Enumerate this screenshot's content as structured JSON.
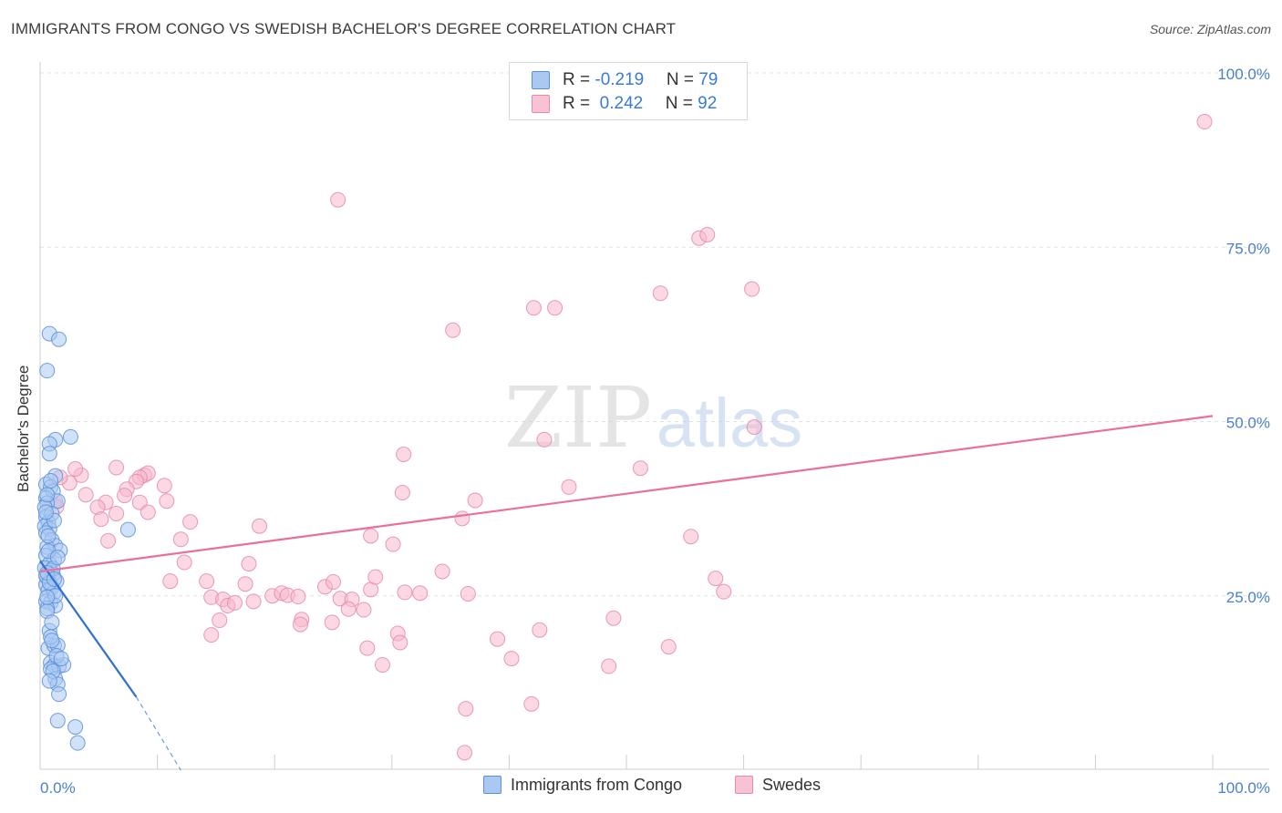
{
  "title": "IMMIGRANTS FROM CONGO VS SWEDISH BACHELOR'S DEGREE CORRELATION CHART",
  "source": "Source: ZipAtlas.com",
  "watermark": {
    "zip": "ZIP",
    "atlas": "atlas"
  },
  "legend": {
    "rows": [
      {
        "r_label": "R = ",
        "r_value": "-0.219",
        "n_label": "N = ",
        "n_value": "79"
      },
      {
        "r_label": "R = ",
        "r_value": " 0.242",
        "n_label": "N = ",
        "n_value": "92"
      }
    ]
  },
  "colors": {
    "blue_fill": "#a9c8f2",
    "blue_stroke": "#5b8fd8",
    "blue_line": "#2f6fd6",
    "pink_fill": "#f7b8cc",
    "pink_stroke": "#e58aa8",
    "pink_line": "#e8709a",
    "tick_text": "#4a7fd0",
    "grid": "#e2e2e2"
  },
  "chart_data": {
    "type": "scatter",
    "ylabel": "Bachelor's Degree",
    "xlim": [
      0,
      100
    ],
    "ylim": [
      0,
      100
    ],
    "x_ticks": [
      "0.0%",
      "100.0%"
    ],
    "y_ticks": [
      {
        "value": 100,
        "label": "100.0%"
      },
      {
        "value": 75,
        "label": "75.0%"
      },
      {
        "value": 50,
        "label": "50.0%"
      },
      {
        "value": 25,
        "label": "25.0%"
      }
    ],
    "series": [
      {
        "name": "Immigrants from Congo",
        "color": "blue",
        "trend": {
          "x0": 0,
          "y0": 30.0,
          "x1": 8.2,
          "y1": 10.5,
          "dash_to_x": 12.0,
          "dash_to_y": 0
        },
        "points": [
          [
            0.8,
            62.6
          ],
          [
            1.6,
            61.8
          ],
          [
            0.6,
            57.3
          ],
          [
            2.6,
            47.8
          ],
          [
            1.3,
            47.4
          ],
          [
            0.8,
            46.8
          ],
          [
            0.8,
            45.4
          ],
          [
            1.3,
            42.2
          ],
          [
            0.5,
            41.0
          ],
          [
            0.9,
            40.6
          ],
          [
            1.1,
            40.0
          ],
          [
            0.5,
            39.0
          ],
          [
            1.5,
            38.6
          ],
          [
            0.6,
            38.3
          ],
          [
            0.4,
            37.7
          ],
          [
            0.5,
            36.3
          ],
          [
            0.7,
            35.5
          ],
          [
            0.4,
            35.0
          ],
          [
            0.8,
            34.6
          ],
          [
            0.5,
            34.0
          ],
          [
            7.5,
            34.5
          ],
          [
            1.0,
            33.0
          ],
          [
            1.3,
            32.2
          ],
          [
            0.6,
            32.0
          ],
          [
            1.7,
            31.5
          ],
          [
            0.5,
            30.8
          ],
          [
            1.2,
            30.2
          ],
          [
            0.8,
            29.6
          ],
          [
            0.4,
            29.0
          ],
          [
            0.9,
            28.6
          ],
          [
            1.1,
            28.1
          ],
          [
            0.6,
            27.6
          ],
          [
            1.4,
            27.1
          ],
          [
            0.5,
            26.6
          ],
          [
            1.0,
            26.2
          ],
          [
            0.7,
            25.8
          ],
          [
            1.2,
            25.5
          ],
          [
            0.5,
            24.2
          ],
          [
            0.9,
            24.0
          ],
          [
            1.3,
            23.6
          ],
          [
            0.6,
            23.2
          ],
          [
            0.8,
            20.0
          ],
          [
            0.7,
            17.5
          ],
          [
            1.2,
            17.9
          ],
          [
            1.5,
            17.9
          ],
          [
            0.9,
            15.4
          ],
          [
            1.2,
            15.0
          ],
          [
            1.6,
            14.9
          ],
          [
            2.0,
            15.1
          ],
          [
            0.9,
            14.5
          ],
          [
            1.3,
            13.1
          ],
          [
            1.5,
            12.3
          ],
          [
            1.6,
            10.9
          ],
          [
            1.5,
            7.1
          ],
          [
            3.0,
            6.2
          ],
          [
            3.2,
            3.9
          ],
          [
            0.6,
            39.5
          ],
          [
            1.0,
            36.8
          ],
          [
            0.7,
            31.4
          ],
          [
            1.1,
            28.9
          ],
          [
            0.5,
            27.9
          ],
          [
            0.8,
            26.9
          ],
          [
            1.3,
            25.0
          ],
          [
            0.6,
            22.8
          ],
          [
            1.0,
            21.2
          ],
          [
            0.9,
            19.1
          ],
          [
            1.4,
            16.4
          ],
          [
            1.1,
            14.2
          ],
          [
            0.7,
            33.6
          ],
          [
            1.2,
            35.8
          ],
          [
            0.5,
            37.0
          ],
          [
            0.9,
            41.5
          ],
          [
            1.5,
            30.5
          ],
          [
            0.6,
            24.8
          ],
          [
            1.0,
            18.6
          ],
          [
            1.8,
            16.0
          ],
          [
            0.8,
            12.8
          ],
          [
            0.6,
            28.3
          ],
          [
            1.2,
            27.4
          ]
        ]
      },
      {
        "name": "Swedes",
        "color": "pink",
        "trend": {
          "x0": 0,
          "y0": 28.5,
          "x1": 100,
          "y1": 50.8
        },
        "points": [
          [
            99.3,
            93.0
          ],
          [
            25.4,
            81.8
          ],
          [
            56.2,
            76.3
          ],
          [
            56.9,
            76.8
          ],
          [
            52.9,
            68.4
          ],
          [
            60.7,
            69.0
          ],
          [
            42.1,
            66.3
          ],
          [
            43.9,
            66.3
          ],
          [
            35.2,
            63.1
          ],
          [
            60.9,
            49.2
          ],
          [
            31.0,
            45.3
          ],
          [
            43.0,
            47.4
          ],
          [
            51.2,
            43.3
          ],
          [
            45.1,
            40.6
          ],
          [
            30.9,
            39.8
          ],
          [
            37.1,
            38.7
          ],
          [
            36.0,
            36.1
          ],
          [
            28.2,
            33.6
          ],
          [
            30.1,
            32.4
          ],
          [
            10.6,
            40.8
          ],
          [
            3.5,
            42.3
          ],
          [
            3.0,
            43.2
          ],
          [
            2.5,
            41.2
          ],
          [
            1.7,
            42.0
          ],
          [
            1.3,
            38.6
          ],
          [
            1.4,
            37.8
          ],
          [
            3.9,
            39.5
          ],
          [
            6.5,
            43.4
          ],
          [
            8.9,
            42.3
          ],
          [
            9.2,
            42.6
          ],
          [
            8.5,
            42.0
          ],
          [
            8.2,
            41.4
          ],
          [
            7.4,
            40.3
          ],
          [
            7.2,
            39.4
          ],
          [
            5.6,
            38.4
          ],
          [
            4.9,
            37.7
          ],
          [
            8.5,
            38.4
          ],
          [
            10.8,
            38.6
          ],
          [
            9.2,
            37.0
          ],
          [
            6.5,
            36.8
          ],
          [
            5.2,
            36.0
          ],
          [
            12.8,
            35.6
          ],
          [
            18.7,
            35.0
          ],
          [
            12.0,
            33.1
          ],
          [
            5.8,
            32.9
          ],
          [
            12.3,
            29.8
          ],
          [
            17.8,
            29.6
          ],
          [
            11.1,
            27.1
          ],
          [
            14.2,
            27.1
          ],
          [
            17.5,
            26.7
          ],
          [
            14.6,
            24.8
          ],
          [
            15.6,
            24.5
          ],
          [
            16.0,
            23.6
          ],
          [
            16.6,
            24.0
          ],
          [
            18.2,
            24.2
          ],
          [
            19.8,
            25.0
          ],
          [
            20.6,
            25.4
          ],
          [
            21.1,
            25.1
          ],
          [
            22.0,
            24.9
          ],
          [
            24.3,
            26.3
          ],
          [
            25.0,
            27.0
          ],
          [
            22.3,
            21.6
          ],
          [
            22.2,
            20.9
          ],
          [
            24.9,
            21.2
          ],
          [
            25.6,
            24.6
          ],
          [
            26.6,
            24.5
          ],
          [
            26.3,
            23.1
          ],
          [
            27.6,
            23.0
          ],
          [
            28.2,
            25.9
          ],
          [
            32.4,
            25.4
          ],
          [
            34.3,
            28.5
          ],
          [
            36.5,
            25.3
          ],
          [
            15.3,
            21.5
          ],
          [
            14.6,
            19.4
          ],
          [
            30.5,
            19.6
          ],
          [
            30.7,
            18.3
          ],
          [
            39.0,
            18.8
          ],
          [
            40.2,
            16.0
          ],
          [
            42.6,
            20.1
          ],
          [
            48.9,
            21.8
          ],
          [
            53.6,
            17.7
          ],
          [
            57.6,
            27.5
          ],
          [
            58.3,
            25.6
          ],
          [
            55.5,
            33.5
          ],
          [
            28.6,
            27.7
          ],
          [
            31.1,
            25.5
          ],
          [
            27.9,
            17.5
          ],
          [
            29.2,
            15.1
          ],
          [
            36.3,
            8.8
          ],
          [
            41.9,
            9.5
          ],
          [
            36.2,
            2.5
          ],
          [
            48.5,
            14.9
          ]
        ]
      }
    ]
  },
  "bottom_legend": [
    {
      "label": "Immigrants from Congo",
      "color": "blue"
    },
    {
      "label": "Swedes",
      "color": "pink"
    }
  ]
}
